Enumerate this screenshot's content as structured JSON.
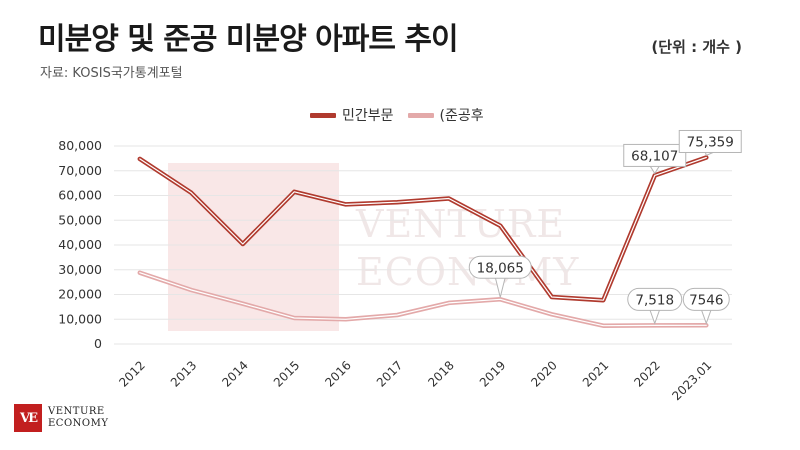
{
  "header": {
    "title": "미분양 및 준공 미분양 아파트 추이",
    "source": "자료: KOSIS국가통계포털",
    "unit": "(단위 : 개수 )"
  },
  "watermark": {
    "line1": "VENTURE",
    "line2": "ECONOMY"
  },
  "logo": {
    "mark": "VE",
    "line1": "VENTURE",
    "line2": "ECONOMY"
  },
  "colors": {
    "series1": "#b03a2e",
    "series2": "#e3a9a9",
    "grid": "#e6e6e6",
    "axis_text": "#333333",
    "brand": "#c21f1f"
  },
  "chart_data": {
    "type": "line",
    "title": "미분양 및 준공 미분양 아파트 추이",
    "xlabel": "",
    "ylabel": "",
    "categories": [
      "2012",
      "2013",
      "2014",
      "2015",
      "2016",
      "2017",
      "2018",
      "2019",
      "2020",
      "2021",
      "2022",
      "2023.01"
    ],
    "ylim": [
      0,
      80000
    ],
    "yticks": [
      "0",
      "10,000",
      "20,000",
      "30,000",
      "40,000",
      "50,000",
      "60,000",
      "70,000",
      "80,000"
    ],
    "grid": true,
    "legend_position": "top-center",
    "series": [
      {
        "name": "민간부문",
        "values": [
          74800,
          61100,
          40400,
          61500,
          56400,
          57300,
          58800,
          47800,
          19000,
          17700,
          68107,
          75359
        ]
      },
      {
        "name": "(준공후",
        "values": [
          28800,
          21800,
          16300,
          10500,
          10000,
          11700,
          16600,
          18065,
          12000,
          7400,
          7518,
          7546
        ]
      }
    ],
    "annotations": [
      {
        "series": 0,
        "index": 10,
        "text": "68,107"
      },
      {
        "series": 0,
        "index": 11,
        "text": "75,359"
      },
      {
        "series": 1,
        "index": 7,
        "text": "18,065"
      },
      {
        "series": 1,
        "index": 10,
        "text": "7,518"
      },
      {
        "series": 1,
        "index": 11,
        "text": "7546"
      }
    ]
  }
}
